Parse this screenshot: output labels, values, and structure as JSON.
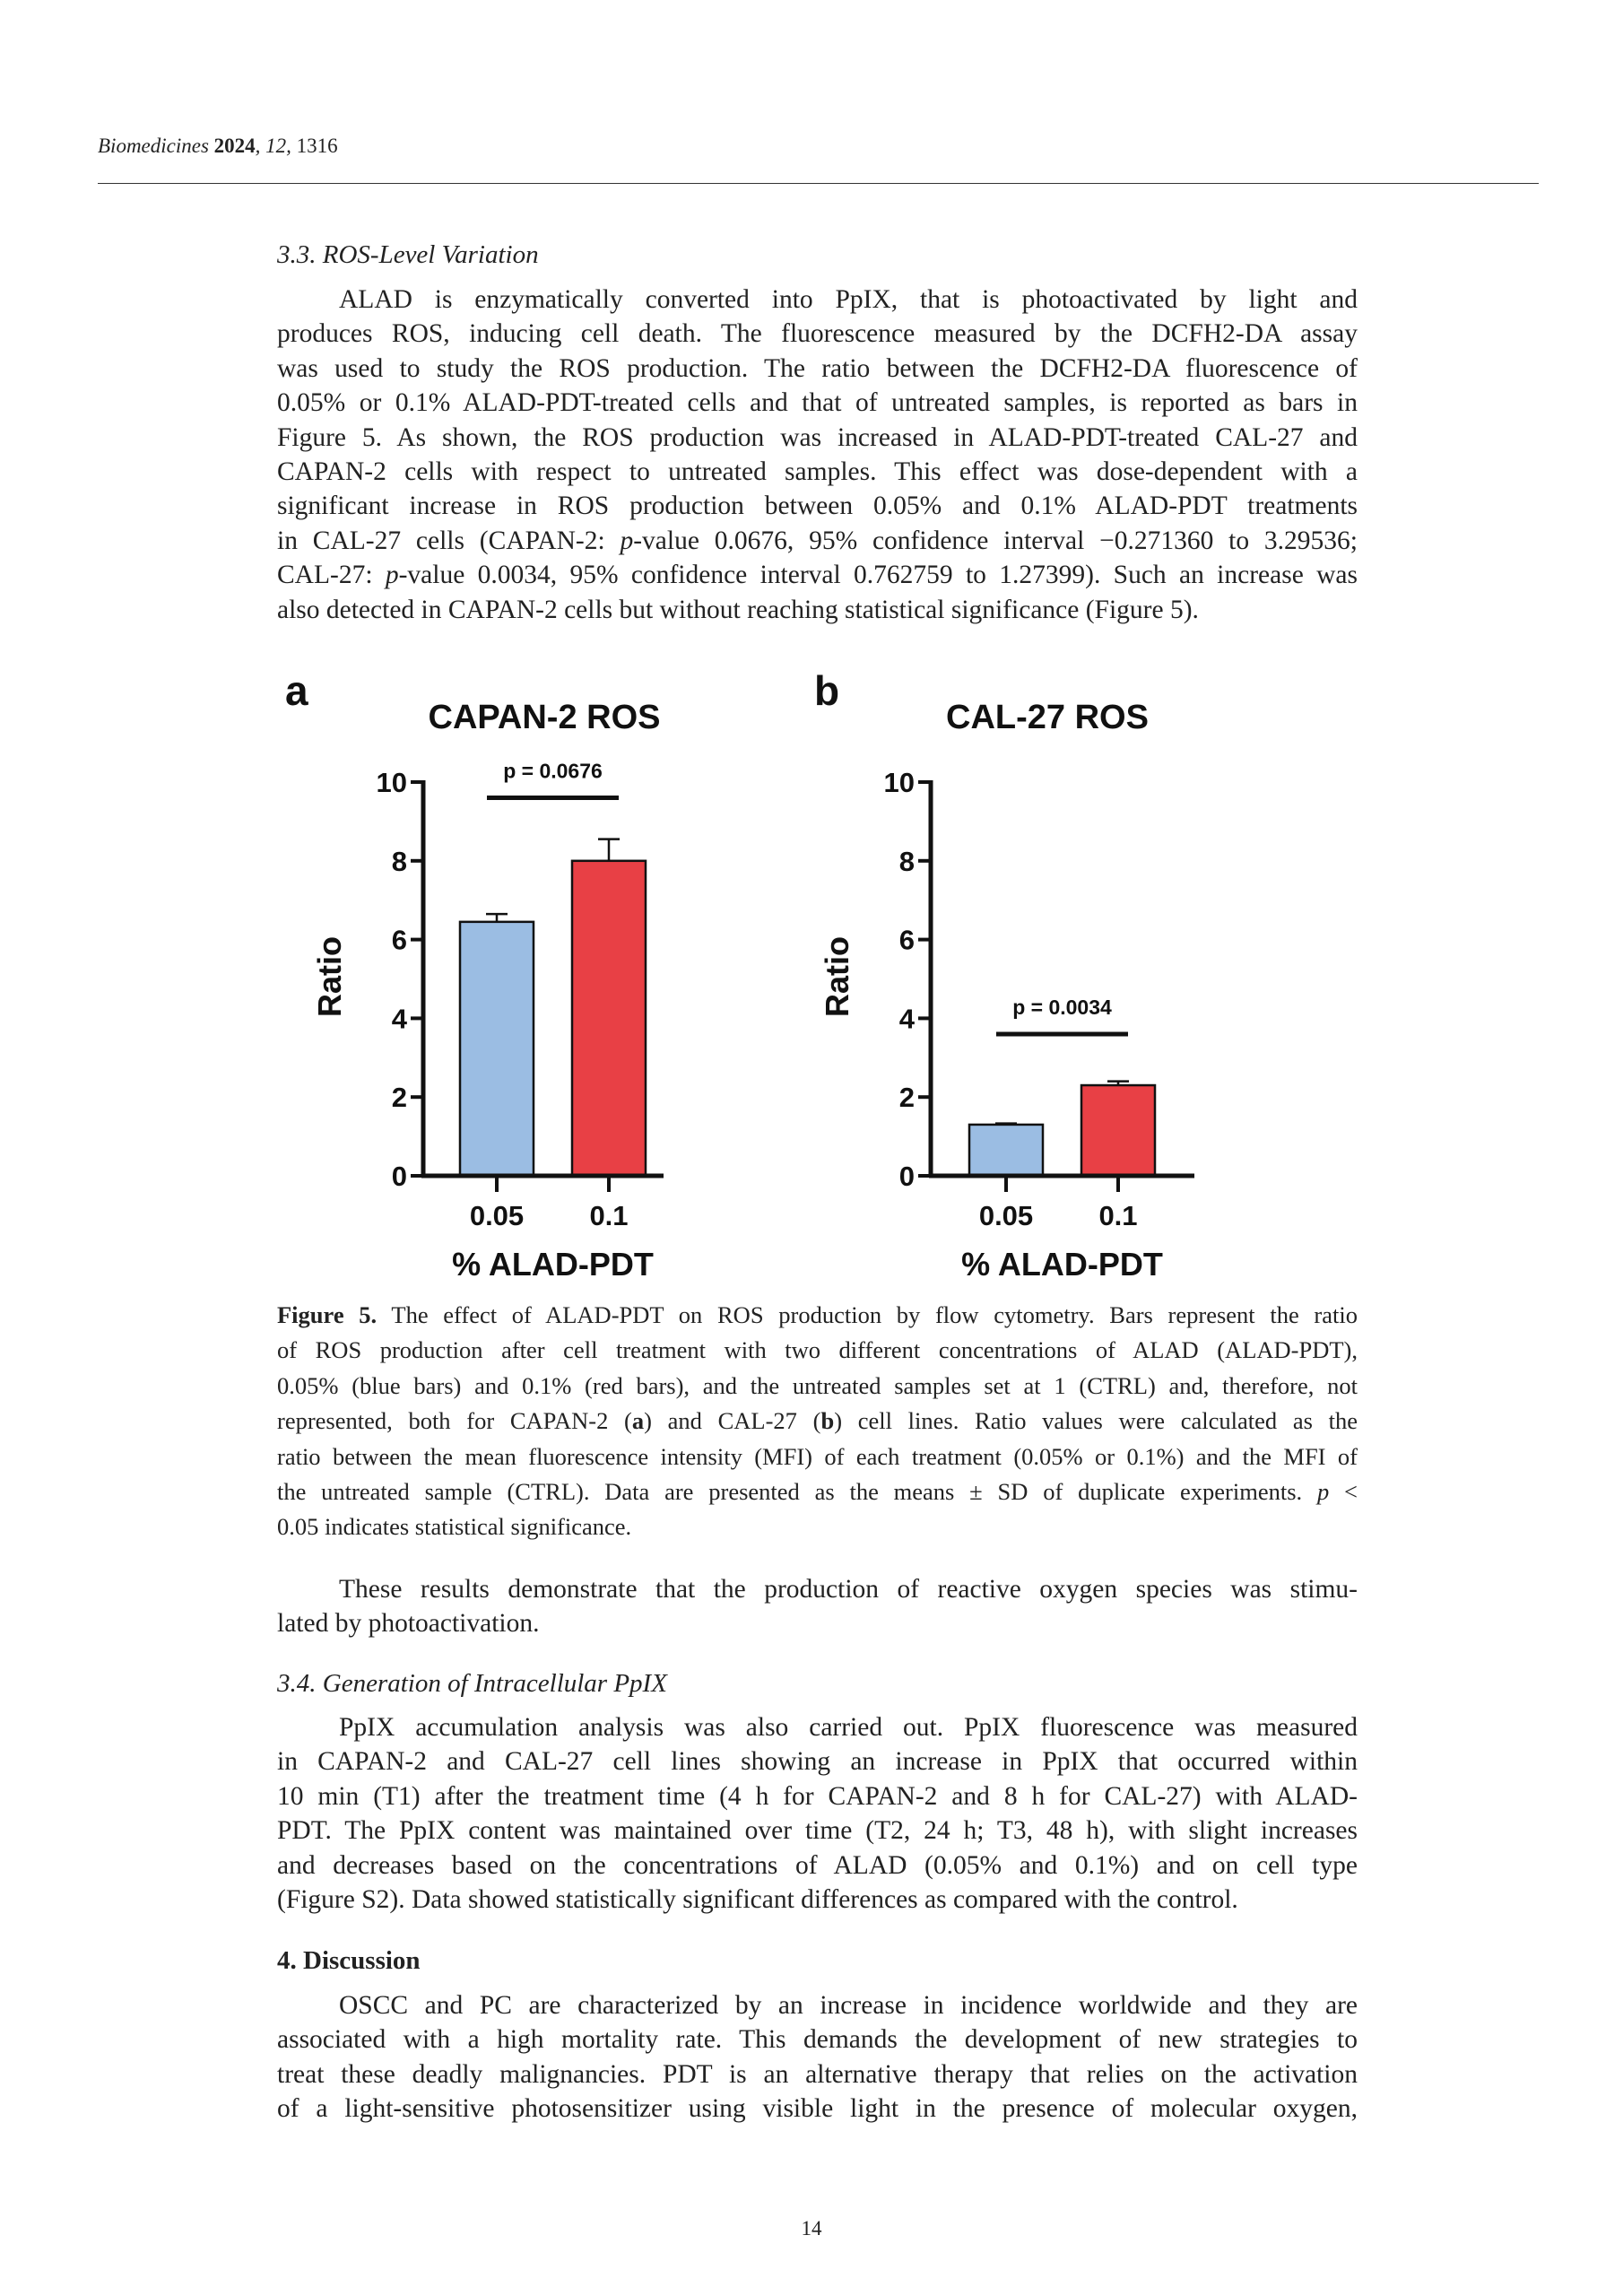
{
  "header": {
    "journal": "Biomedicines",
    "year": "2024",
    "volume": "12",
    "article": "1316"
  },
  "section_3_3": {
    "heading": "3.3. ROS-Level Variation",
    "lines": [
      "ALAD is enzymatically converted into PpIX, that is photoactivated by light and",
      "produces ROS, inducing cell death. The fluorescence measured by the DCFH2-DA assay",
      "was used to study the ROS production. The ratio between the DCFH2-DA fluorescence of",
      "0.05% or 0.1% ALAD-PDT-treated cells and that of untreated samples, is reported as bars in",
      "Figure 5. As shown, the ROS production was increased in ALAD-PDT-treated CAL-27 and",
      "CAPAN-2 cells with respect to untreated samples. This effect was dose-dependent with a",
      "significant increase in ROS production between 0.05% and 0.1% ALAD-PDT treatments",
      [
        {
          "t": "in CAL-27 cells (CAPAN-2: "
        },
        {
          "t": "p",
          "s": "i"
        },
        {
          "t": "-value 0.0676, 95% confidence interval −0.271360 to 3.29536;"
        }
      ],
      [
        {
          "t": "CAL-27: "
        },
        {
          "t": "p",
          "s": "i"
        },
        {
          "t": "-value 0.0034, 95% confidence interval 0.762759 to 1.27399). Such an increase was"
        }
      ],
      "also detected in CAPAN-2 cells but without reaching statistical significance (Figure 5)."
    ]
  },
  "chart_data": [
    {
      "type": "bar",
      "panel": "a",
      "title": "CAPAN-2 ROS",
      "xlabel": "% ALAD-PDT",
      "ylabel": "Ratio",
      "categories": [
        "0.05",
        "0.1"
      ],
      "values": [
        6.45,
        8.0
      ],
      "errors": [
        0.2,
        0.55
      ],
      "colors": [
        "#9bbde3",
        "#e84045"
      ],
      "ylim": [
        0,
        10
      ],
      "yticks": [
        "0",
        "2",
        "4",
        "6",
        "8",
        "10"
      ],
      "annotation": {
        "text": "p = 0.0676",
        "y": 9.6
      }
    },
    {
      "type": "bar",
      "panel": "b",
      "title": "CAL-27 ROS",
      "xlabel": "% ALAD-PDT",
      "ylabel": "Ratio",
      "categories": [
        "0.05",
        "0.1"
      ],
      "values": [
        1.3,
        2.3
      ],
      "errors": [
        0.03,
        0.1
      ],
      "colors": [
        "#9bbde3",
        "#e84045"
      ],
      "ylim": [
        0,
        10
      ],
      "yticks": [
        "0",
        "2",
        "4",
        "6",
        "8",
        "10"
      ],
      "annotation": {
        "text": "p = 0.0034",
        "y": 3.6
      }
    }
  ],
  "caption": {
    "lines": [
      [
        {
          "t": "Figure 5.",
          "s": "b"
        },
        {
          "t": " The effect of ALAD-PDT on ROS production by flow cytometry. Bars represent the ratio"
        }
      ],
      "of ROS production after cell treatment with two different concentrations of ALAD (ALAD-PDT),",
      "0.05% (blue bars) and 0.1% (red bars), and the untreated samples set at 1 (CTRL) and, therefore, not",
      [
        {
          "t": "represented, both for CAPAN-2 ("
        },
        {
          "t": "a",
          "s": "b"
        },
        {
          "t": ") and CAL-27 ("
        },
        {
          "t": "b",
          "s": "b"
        },
        {
          "t": ") cell lines. Ratio values were calculated as the"
        }
      ],
      "ratio between the mean fluorescence intensity (MFI) of each treatment (0.05% or 0.1%) and the MFI of",
      [
        {
          "t": "the untreated sample (CTRL). Data are presented as the means ± SD of duplicate experiments. "
        },
        {
          "t": "p",
          "s": "i"
        },
        {
          "t": " <"
        }
      ],
      "0.05 indicates statistical significance."
    ]
  },
  "results_para": {
    "lines": [
      "These results demonstrate that the production of reactive oxygen species was stimu-",
      "lated by photoactivation."
    ]
  },
  "section_3_4": {
    "heading": "3.4. Generation of Intracellular PpIX",
    "lines": [
      "PpIX accumulation analysis was also carried out. PpIX fluorescence was measured",
      "in CAPAN-2 and CAL-27 cell lines showing an increase in PpIX that occurred within",
      "10 min (T1) after the treatment time (4 h for CAPAN-2 and 8 h for CAL-27) with ALAD-",
      "PDT. The PpIX content was maintained over time (T2, 24 h; T3, 48 h), with slight increases",
      "and decreases based on the concentrations of ALAD (0.05% and 0.1%) and on cell type",
      "(Figure S2). Data showed statistically significant differences as compared with the control."
    ]
  },
  "section_4": {
    "heading": "4. Discussion",
    "lines": [
      "OSCC and PC are characterized by an increase in incidence worldwide and they are",
      "associated with a high mortality rate. This demands the development of new strategies to",
      "treat these deadly malignancies. PDT is an alternative therapy that relies on the activation",
      "of a light-sensitive photosensitizer using visible light in the presence of molecular oxygen,"
    ]
  },
  "footer": {
    "page_number": "14"
  }
}
